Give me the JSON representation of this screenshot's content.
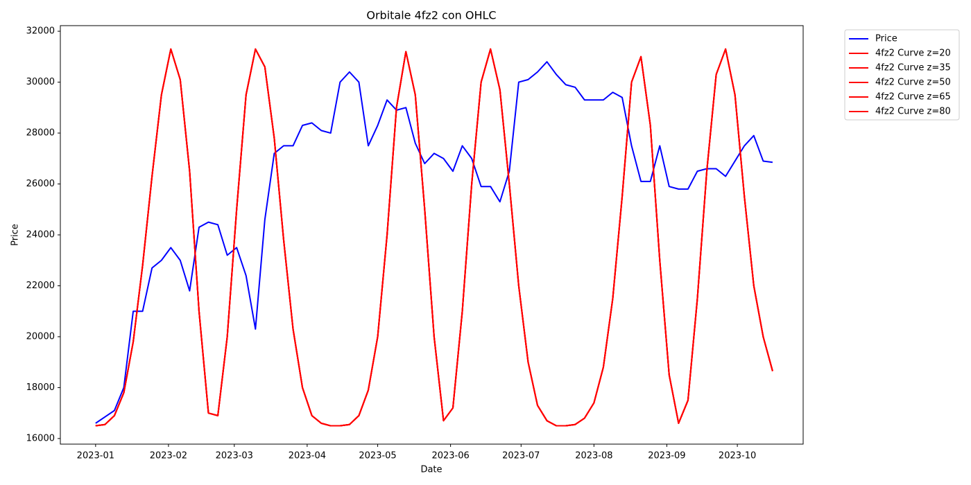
{
  "chart_data": {
    "type": "line",
    "title": "Orbitale 4fz2 con OHLC",
    "x_label": "Date",
    "y_label": "Price",
    "x": [
      "2023-01-01",
      "2023-01-05",
      "2023-01-09",
      "2023-01-13",
      "2023-01-17",
      "2023-01-21",
      "2023-01-25",
      "2023-01-29",
      "2023-02-02",
      "2023-02-06",
      "2023-02-10",
      "2023-02-14",
      "2023-02-18",
      "2023-02-22",
      "2023-02-26",
      "2023-03-02",
      "2023-03-06",
      "2023-03-10",
      "2023-03-14",
      "2023-03-18",
      "2023-03-22",
      "2023-03-26",
      "2023-03-30",
      "2023-04-03",
      "2023-04-07",
      "2023-04-11",
      "2023-04-15",
      "2023-04-19",
      "2023-04-23",
      "2023-04-27",
      "2023-05-01",
      "2023-05-05",
      "2023-05-09",
      "2023-05-13",
      "2023-05-17",
      "2023-05-21",
      "2023-05-25",
      "2023-05-29",
      "2023-06-02",
      "2023-06-06",
      "2023-06-10",
      "2023-06-14",
      "2023-06-18",
      "2023-06-22",
      "2023-06-26",
      "2023-06-30",
      "2023-07-04",
      "2023-07-08",
      "2023-07-12",
      "2023-07-16",
      "2023-07-20",
      "2023-07-24",
      "2023-07-28",
      "2023-08-01",
      "2023-08-05",
      "2023-08-09",
      "2023-08-13",
      "2023-08-17",
      "2023-08-21",
      "2023-08-25",
      "2023-08-29",
      "2023-09-02",
      "2023-09-06",
      "2023-09-10",
      "2023-09-14",
      "2023-09-18",
      "2023-09-22",
      "2023-09-26",
      "2023-09-30",
      "2023-10-04",
      "2023-10-08",
      "2023-10-12",
      "2023-10-16"
    ],
    "series": [
      {
        "name": "Price",
        "color": "#0000ff",
        "values": [
          16600,
          16850,
          17100,
          18000,
          21000,
          21000,
          22700,
          23000,
          23500,
          23000,
          21800,
          24300,
          24500,
          24400,
          23200,
          23500,
          22400,
          20300,
          24600,
          27200,
          27500,
          27500,
          28300,
          28400,
          28100,
          28000,
          30000,
          30400,
          30000,
          27500,
          28300,
          29300,
          28900,
          29000,
          27600,
          26800,
          27200,
          27000,
          26500,
          27500,
          27000,
          25900,
          25900,
          25300,
          26500,
          30000,
          30100,
          30400,
          30800,
          30300,
          29900,
          29800,
          29300,
          29300,
          29300,
          29600,
          29400,
          27500,
          26100,
          26100,
          27500,
          25900,
          25800,
          25800,
          26500,
          26600,
          26600,
          26300,
          26900,
          27500,
          27900,
          26900,
          26850
        ]
      },
      {
        "name": "4fz2 Curve z=20",
        "color": "#ff0000",
        "values": [
          16500,
          16550,
          16900,
          17800,
          19800,
          22800,
          26300,
          29500,
          31300,
          30100,
          26500,
          21000,
          17000,
          16900,
          20000,
          25000,
          29500,
          31300,
          30600,
          27800,
          23800,
          20300,
          18000,
          16900,
          16600,
          16500,
          16500,
          16550,
          16900,
          17900,
          20000,
          24000,
          29000,
          31200,
          29500,
          25000,
          20000,
          16700,
          17200,
          21000,
          26000,
          30000,
          31300,
          29700,
          26000,
          22000,
          19000,
          17300,
          16700,
          16500,
          16500,
          16550,
          16800,
          17400,
          18800,
          21500,
          25500,
          30000,
          31000,
          28300,
          23000,
          18500,
          16600,
          17500,
          21500,
          26500,
          30300,
          31300,
          29500,
          25500,
          22000,
          20000,
          18650
        ]
      },
      {
        "name": "4fz2 Curve z=35",
        "color": "#ff0000",
        "values": [
          16500,
          16550,
          16900,
          17800,
          19800,
          22800,
          26300,
          29500,
          31300,
          30100,
          26500,
          21000,
          17000,
          16900,
          20000,
          25000,
          29500,
          31300,
          30600,
          27800,
          23800,
          20300,
          18000,
          16900,
          16600,
          16500,
          16500,
          16550,
          16900,
          17900,
          20000,
          24000,
          29000,
          31200,
          29500,
          25000,
          20000,
          16700,
          17200,
          21000,
          26000,
          30000,
          31300,
          29700,
          26000,
          22000,
          19000,
          17300,
          16700,
          16500,
          16500,
          16550,
          16800,
          17400,
          18800,
          21500,
          25500,
          30000,
          31000,
          28300,
          23000,
          18500,
          16600,
          17500,
          21500,
          26500,
          30300,
          31300,
          29500,
          25500,
          22000,
          20000,
          18650
        ]
      },
      {
        "name": "4fz2 Curve z=50",
        "color": "#ff0000",
        "values": [
          16500,
          16550,
          16900,
          17800,
          19800,
          22800,
          26300,
          29500,
          31300,
          30100,
          26500,
          21000,
          17000,
          16900,
          20000,
          25000,
          29500,
          31300,
          30600,
          27800,
          23800,
          20300,
          18000,
          16900,
          16600,
          16500,
          16500,
          16550,
          16900,
          17900,
          20000,
          24000,
          29000,
          31200,
          29500,
          25000,
          20000,
          16700,
          17200,
          21000,
          26000,
          30000,
          31300,
          29700,
          26000,
          22000,
          19000,
          17300,
          16700,
          16500,
          16500,
          16550,
          16800,
          17400,
          18800,
          21500,
          25500,
          30000,
          31000,
          28300,
          23000,
          18500,
          16600,
          17500,
          21500,
          26500,
          30300,
          31300,
          29500,
          25500,
          22000,
          20000,
          18650
        ]
      },
      {
        "name": "4fz2 Curve z=65",
        "color": "#ff0000",
        "values": [
          16500,
          16550,
          16900,
          17800,
          19800,
          22800,
          26300,
          29500,
          31300,
          30100,
          26500,
          21000,
          17000,
          16900,
          20000,
          25000,
          29500,
          31300,
          30600,
          27800,
          23800,
          20300,
          18000,
          16900,
          16600,
          16500,
          16500,
          16550,
          16900,
          17900,
          20000,
          24000,
          29000,
          31200,
          29500,
          25000,
          20000,
          16700,
          17200,
          21000,
          26000,
          30000,
          31300,
          29700,
          26000,
          22000,
          19000,
          17300,
          16700,
          16500,
          16500,
          16550,
          16800,
          17400,
          18800,
          21500,
          25500,
          30000,
          31000,
          28300,
          23000,
          18500,
          16600,
          17500,
          21500,
          26500,
          30300,
          31300,
          29500,
          25500,
          22000,
          20000,
          18650
        ]
      },
      {
        "name": "4fz2 Curve z=80",
        "color": "#ff0000",
        "values": [
          16500,
          16550,
          16900,
          17800,
          19800,
          22800,
          26300,
          29500,
          31300,
          30100,
          26500,
          21000,
          17000,
          16900,
          20000,
          25000,
          29500,
          31300,
          30600,
          27800,
          23800,
          20300,
          18000,
          16900,
          16600,
          16500,
          16500,
          16550,
          16900,
          17900,
          20000,
          24000,
          29000,
          31200,
          29500,
          25000,
          20000,
          16700,
          17200,
          21000,
          26000,
          30000,
          31300,
          29700,
          26000,
          22000,
          19000,
          17300,
          16700,
          16500,
          16500,
          16550,
          16800,
          17400,
          18800,
          21500,
          25500,
          30000,
          31000,
          28300,
          23000,
          18500,
          16600,
          17500,
          21500,
          26500,
          30300,
          31300,
          29500,
          25500,
          22000,
          20000,
          18650
        ]
      }
    ],
    "xlim": [
      "2022-12-17",
      "2023-10-29"
    ],
    "xticks": [
      {
        "value": "2023-01-01",
        "label": "2023-01"
      },
      {
        "value": "2023-02-01",
        "label": "2023-02"
      },
      {
        "value": "2023-03-01",
        "label": "2023-03"
      },
      {
        "value": "2023-04-01",
        "label": "2023-04"
      },
      {
        "value": "2023-05-01",
        "label": "2023-05"
      },
      {
        "value": "2023-06-01",
        "label": "2023-06"
      },
      {
        "value": "2023-07-01",
        "label": "2023-07"
      },
      {
        "value": "2023-08-01",
        "label": "2023-08"
      },
      {
        "value": "2023-09-01",
        "label": "2023-09"
      },
      {
        "value": "2023-10-01",
        "label": "2023-10"
      }
    ],
    "ylim": [
      15780,
      32220
    ],
    "yticks": [
      16000,
      18000,
      20000,
      22000,
      24000,
      26000,
      28000,
      30000,
      32000
    ],
    "grid": false,
    "legend": "outside upper right"
  }
}
